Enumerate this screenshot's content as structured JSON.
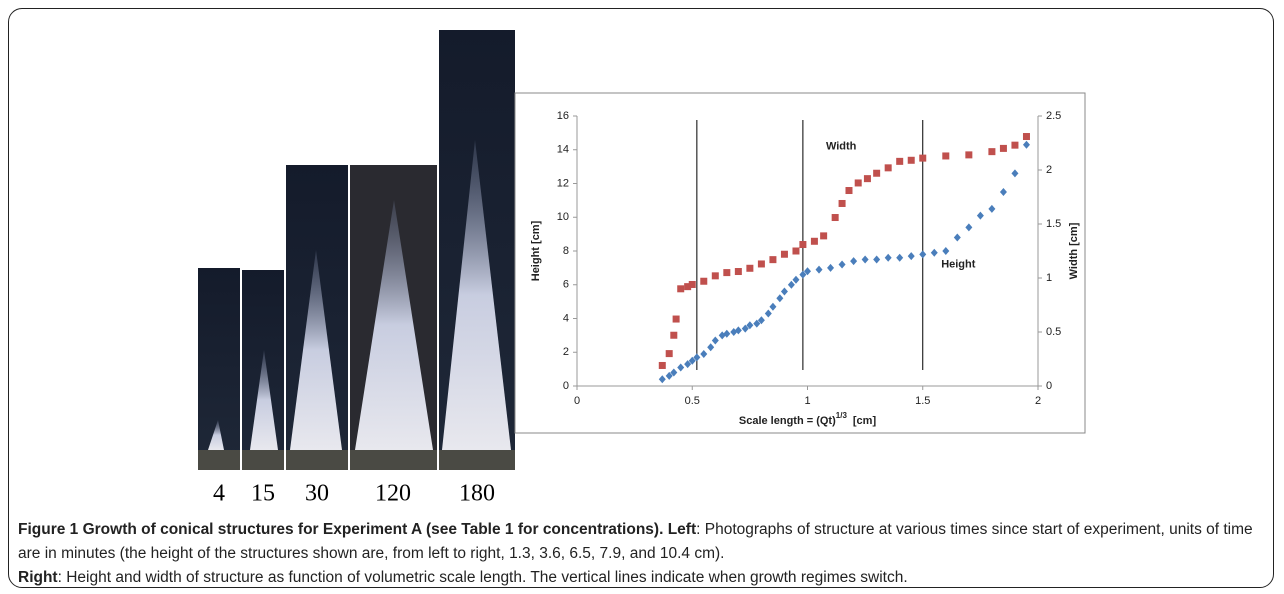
{
  "photos": {
    "labels": [
      "4",
      "15",
      "30",
      "120",
      "180"
    ]
  },
  "caption": {
    "title": "Figure 1 Growth of conical structures for Experiment A (see Table 1 for concentrations).",
    "left_head": "Left",
    "left_text": ": Photographs of structure at various times since start of experiment, units of time are in minutes (the height of the structures shown are, from left to right, 1.3, 3.6, 6.5, 7.9, and 10.4 cm).",
    "right_head": "Right",
    "right_text": ": Height and width of structure as function of volumetric scale length. The vertical lines indicate when growth regimes switch."
  },
  "chart_data": {
    "type": "scatter",
    "x_label": {
      "text": "Scale length = (Qt)",
      "sup": "1/3",
      "unit": "[cm]"
    },
    "y_label": "Height  [cm]",
    "y2_label": "Width  [cm]",
    "xlim": [
      0,
      2
    ],
    "xticks": [
      0,
      0.5,
      1,
      1.5,
      2
    ],
    "ylim": [
      0,
      16
    ],
    "yticks": [
      0,
      2,
      4,
      6,
      8,
      10,
      12,
      14,
      16
    ],
    "y2lim": [
      0,
      2.5
    ],
    "y2ticks": [
      0,
      0.5,
      1,
      1.5,
      2,
      2.5
    ],
    "vlines": [
      0.52,
      0.98,
      1.5
    ],
    "annotations": [
      {
        "text": "Width",
        "x": 1.08,
        "y": 14.2
      },
      {
        "text": "Height",
        "x": 1.58,
        "y": 7.2
      }
    ],
    "series": [
      {
        "name": "Height",
        "color": "#4a7ebb",
        "marker": "diamond",
        "axis": "y",
        "x": [
          0.37,
          0.4,
          0.42,
          0.45,
          0.48,
          0.5,
          0.52,
          0.55,
          0.58,
          0.6,
          0.63,
          0.65,
          0.68,
          0.7,
          0.73,
          0.75,
          0.78,
          0.8,
          0.83,
          0.85,
          0.88,
          0.9,
          0.93,
          0.95,
          0.98,
          1.0,
          1.05,
          1.1,
          1.15,
          1.2,
          1.25,
          1.3,
          1.35,
          1.4,
          1.45,
          1.5,
          1.55,
          1.6,
          1.65,
          1.7,
          1.75,
          1.8,
          1.85,
          1.9,
          1.95
        ],
        "values": [
          0.4,
          0.6,
          0.8,
          1.1,
          1.3,
          1.5,
          1.7,
          1.9,
          2.3,
          2.7,
          3.0,
          3.1,
          3.2,
          3.3,
          3.4,
          3.6,
          3.7,
          3.9,
          4.3,
          4.7,
          5.2,
          5.6,
          6.0,
          6.3,
          6.6,
          6.8,
          6.9,
          7.0,
          7.2,
          7.4,
          7.5,
          7.5,
          7.6,
          7.6,
          7.7,
          7.8,
          7.9,
          8.0,
          8.8,
          9.4,
          10.1,
          10.5,
          11.5,
          12.6,
          14.3
        ]
      },
      {
        "name": "Width",
        "color": "#c0504d",
        "marker": "square",
        "axis": "y2",
        "x": [
          0.37,
          0.4,
          0.42,
          0.43,
          0.45,
          0.48,
          0.5,
          0.55,
          0.6,
          0.65,
          0.7,
          0.75,
          0.8,
          0.85,
          0.9,
          0.95,
          0.98,
          1.03,
          1.07,
          1.12,
          1.15,
          1.18,
          1.22,
          1.26,
          1.3,
          1.35,
          1.4,
          1.45,
          1.5,
          1.6,
          1.7,
          1.8,
          1.85,
          1.9,
          1.95
        ],
        "values": [
          0.19,
          0.3,
          0.47,
          0.62,
          0.9,
          0.92,
          0.94,
          0.97,
          1.02,
          1.05,
          1.06,
          1.09,
          1.13,
          1.17,
          1.22,
          1.25,
          1.31,
          1.34,
          1.39,
          1.56,
          1.69,
          1.81,
          1.88,
          1.92,
          1.97,
          2.02,
          2.08,
          2.09,
          2.11,
          2.13,
          2.14,
          2.17,
          2.2,
          2.23,
          2.31
        ]
      }
    ]
  }
}
